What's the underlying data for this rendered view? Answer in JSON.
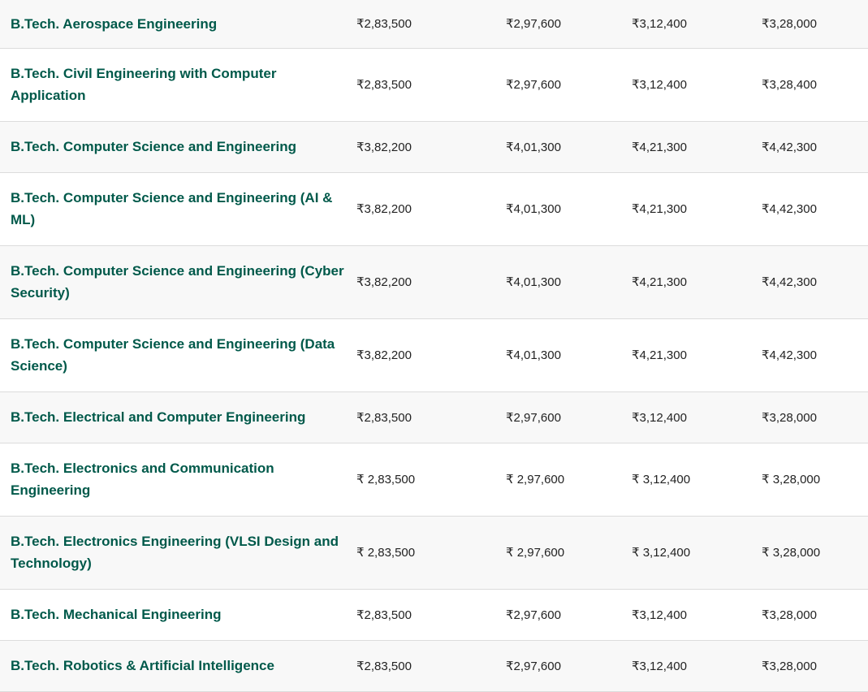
{
  "table": {
    "rows": [
      {
        "course": "B.Tech. Aerospace Engineering",
        "fees": [
          "₹2,83,500",
          "₹2,97,600",
          "₹3,12,400",
          "₹3,28,000"
        ]
      },
      {
        "course": "B.Tech. Civil Engineering with Computer Application",
        "fees": [
          "₹2,83,500",
          "₹2,97,600",
          "₹3,12,400",
          "₹3,28,400"
        ]
      },
      {
        "course": "B.Tech. Computer Science and Engineering",
        "fees": [
          "₹3,82,200",
          "₹4,01,300",
          "₹4,21,300",
          "₹4,42,300"
        ]
      },
      {
        "course": "B.Tech. Computer Science and Engineering (AI & ML)",
        "fees": [
          "₹3,82,200",
          "₹4,01,300",
          "₹4,21,300",
          "₹4,42,300"
        ]
      },
      {
        "course": "B.Tech. Computer Science and Engineering (Cyber Security)",
        "fees": [
          "₹3,82,200",
          "₹4,01,300",
          "₹4,21,300",
          "₹4,42,300"
        ]
      },
      {
        "course": "B.Tech. Computer Science and Engineering (Data Science)",
        "fees": [
          "₹3,82,200",
          "₹4,01,300",
          "₹4,21,300",
          "₹4,42,300"
        ]
      },
      {
        "course": "B.Tech. Electrical and Computer Engineering",
        "fees": [
          "₹2,83,500",
          "₹2,97,600",
          "₹3,12,400",
          "₹3,28,000"
        ]
      },
      {
        "course": "B.Tech. Electronics and Communication Engineering",
        "fees": [
          "₹ 2,83,500",
          "₹ 2,97,600",
          "₹ 3,12,400",
          "₹ 3,28,000"
        ]
      },
      {
        "course": "B.Tech. Electronics Engineering (VLSI Design and Technology)",
        "fees": [
          "₹ 2,83,500",
          "₹ 2,97,600",
          "₹ 3,12,400",
          "₹ 3,28,000"
        ]
      },
      {
        "course": "B.Tech. Mechanical Engineering",
        "fees": [
          "₹2,83,500",
          "₹2,97,600",
          "₹3,12,400",
          "₹3,28,000"
        ]
      },
      {
        "course": "B.Tech. Robotics & Artificial Intelligence",
        "fees": [
          "₹2,83,500",
          "₹2,97,600",
          "₹3,12,400",
          "₹3,28,000"
        ]
      }
    ]
  }
}
